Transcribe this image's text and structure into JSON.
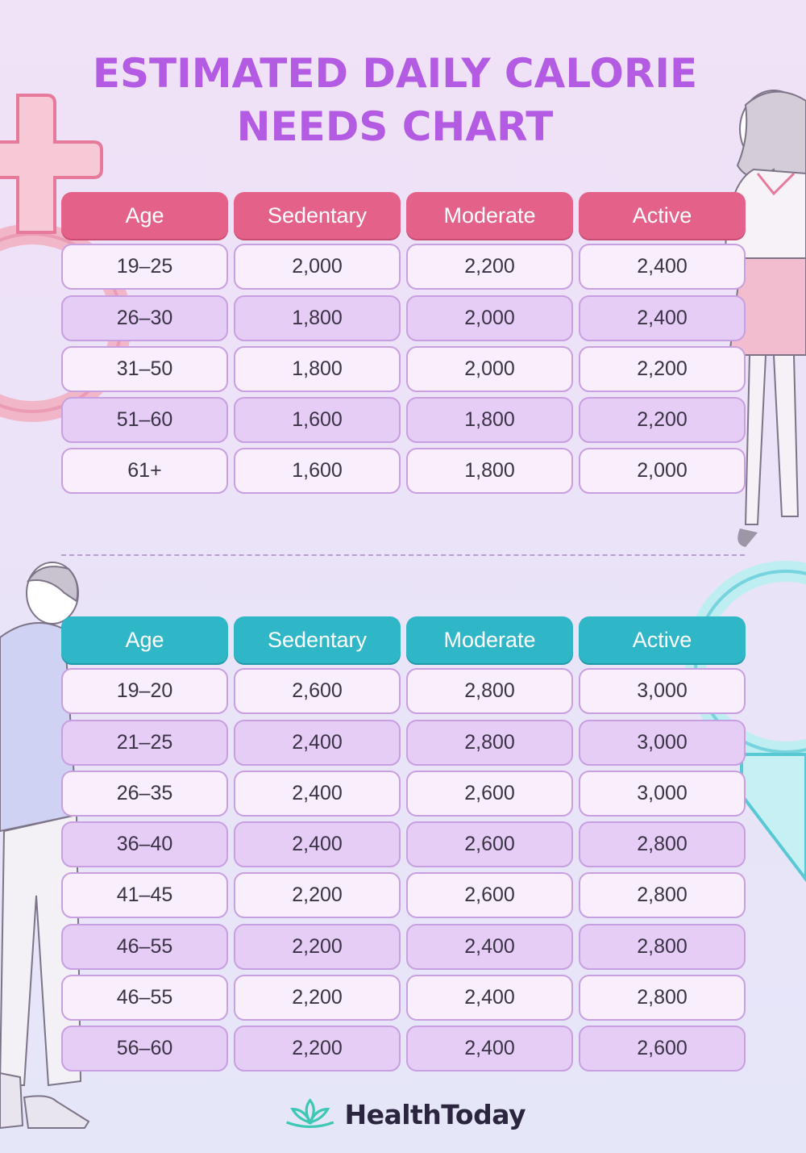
{
  "title": {
    "line1": "ESTIMATED DAILY CALORIE",
    "line2": "NEEDS CHART"
  },
  "colors": {
    "title": "#b35be3",
    "female_header": "#e4628a",
    "male_header": "#2fb7c7",
    "row_light": "#f9eefb",
    "row_dark": "#e6cdf6"
  },
  "icons": [
    "female-symbol-icon",
    "male-symbol-icon",
    "woman-illustration",
    "man-illustration",
    "lotus-logo-icon"
  ],
  "female_table": {
    "headers": [
      "Age",
      "Sedentary",
      "Moderate",
      "Active"
    ],
    "rows": [
      [
        "19–25",
        "2,000",
        "2,200",
        "2,400"
      ],
      [
        "26–30",
        "1,800",
        "2,000",
        "2,400"
      ],
      [
        "31–50",
        "1,800",
        "2,000",
        "2,200"
      ],
      [
        "51–60",
        "1,600",
        "1,800",
        "2,200"
      ],
      [
        "61+",
        "1,600",
        "1,800",
        "2,000"
      ]
    ]
  },
  "male_table": {
    "headers": [
      "Age",
      "Sedentary",
      "Moderate",
      "Active"
    ],
    "rows": [
      [
        "19–20",
        "2,600",
        "2,800",
        "3,000"
      ],
      [
        "21–25",
        "2,400",
        "2,800",
        "3,000"
      ],
      [
        "26–35",
        "2,400",
        "2,600",
        "3,000"
      ],
      [
        "36–40",
        "2,400",
        "2,600",
        "2,800"
      ],
      [
        "41–45",
        "2,200",
        "2,600",
        "2,800"
      ],
      [
        "46–55",
        "2,200",
        "2,400",
        "2,800"
      ],
      [
        "46–55",
        "2,200",
        "2,400",
        "2,800"
      ],
      [
        "56–60",
        "2,200",
        "2,400",
        "2,600"
      ]
    ]
  },
  "footer": {
    "brand": "HealthToday"
  }
}
